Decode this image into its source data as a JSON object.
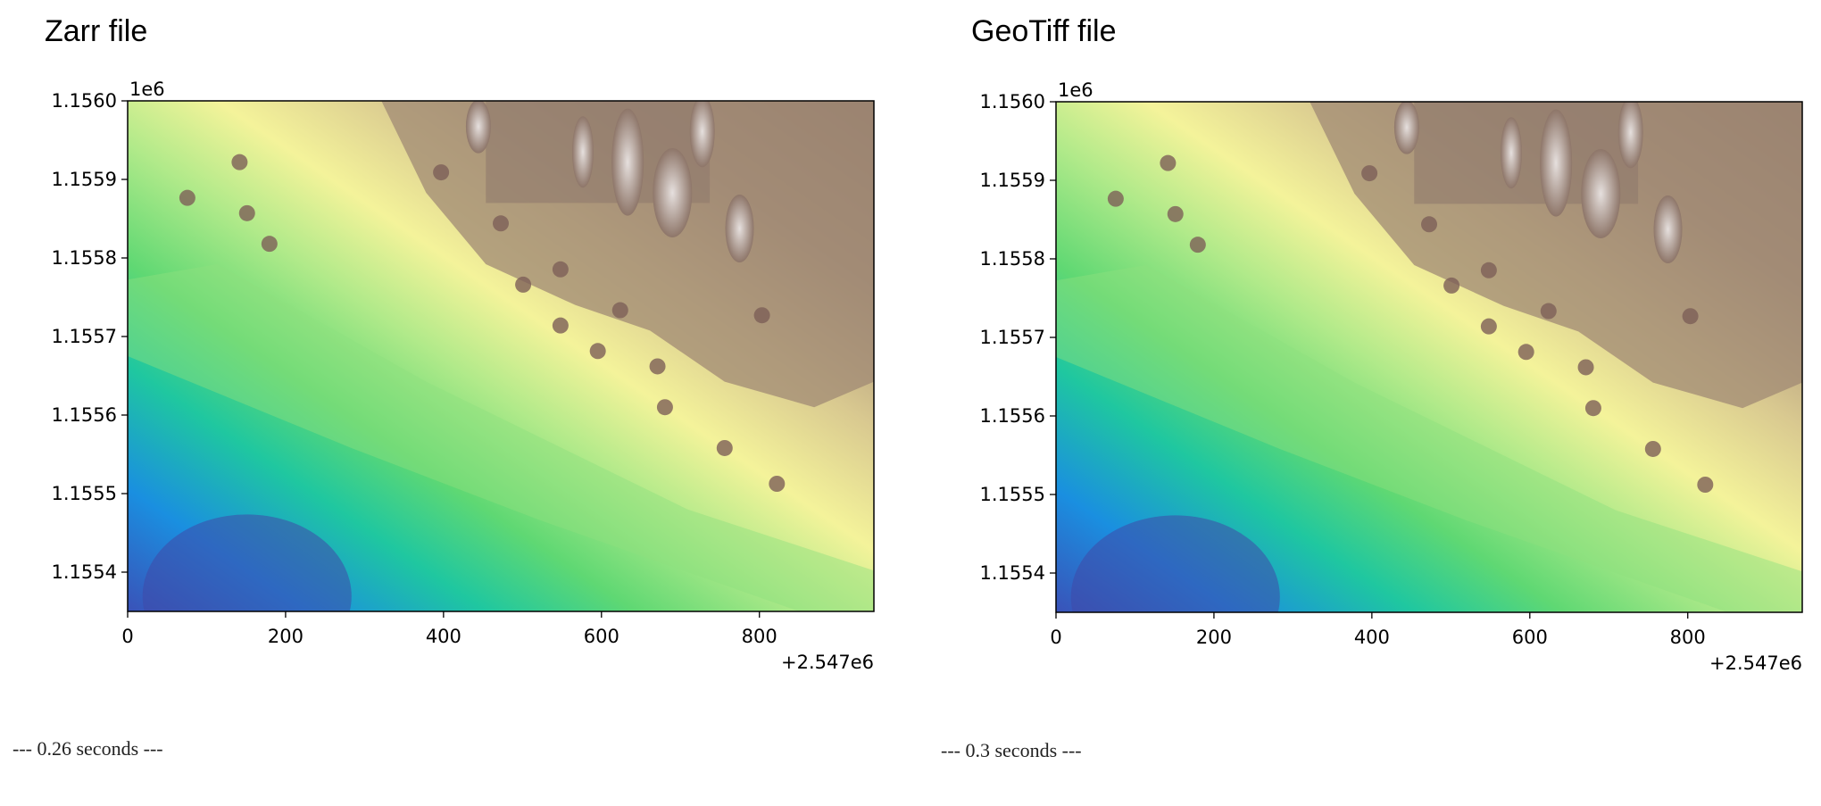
{
  "panels": [
    {
      "title": "Zarr file",
      "timing": "--- 0.26 seconds ---",
      "chart_data": {
        "type": "heatmap",
        "colormap": "terrain",
        "x_offset_label": "+2.547e6",
        "y_exponent_label": "1e6",
        "xlim": [
          0,
          945
        ],
        "ylim": [
          1.15535,
          1.156
        ],
        "x_ticks": [
          0,
          200,
          400,
          600,
          800
        ],
        "x_tick_labels": [
          "0",
          "200",
          "400",
          "600",
          "800"
        ],
        "y_ticks": [
          1.1554,
          1.1555,
          1.1556,
          1.1557,
          1.1558,
          1.1559,
          1.156
        ],
        "y_tick_labels": [
          "1.1554",
          "1.1555",
          "1.1556",
          "1.1557",
          "1.1558",
          "1.1559",
          "1.1560"
        ]
      }
    },
    {
      "title": "GeoTiff file",
      "timing": "--- 0.3 seconds ---",
      "chart_data": {
        "type": "heatmap",
        "colormap": "terrain",
        "x_offset_label": "+2.547e6",
        "y_exponent_label": "1e6",
        "xlim": [
          0,
          945
        ],
        "ylim": [
          1.15535,
          1.156
        ],
        "x_ticks": [
          0,
          200,
          400,
          600,
          800
        ],
        "x_tick_labels": [
          "0",
          "200",
          "400",
          "600",
          "800"
        ],
        "y_ticks": [
          1.1554,
          1.1555,
          1.1556,
          1.1557,
          1.1558,
          1.1559,
          1.156
        ],
        "y_tick_labels": [
          "1.1554",
          "1.1555",
          "1.1556",
          "1.1557",
          "1.1558",
          "1.1559",
          "1.1560"
        ]
      }
    }
  ]
}
